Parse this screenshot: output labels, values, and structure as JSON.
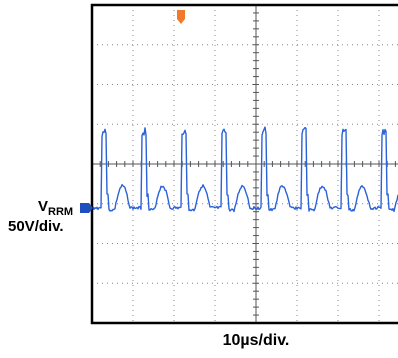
{
  "labels": {
    "channel_symbol": "V",
    "channel_subscript": "RRM",
    "vertical_scale": "50V/div.",
    "horizontal_scale": "10µs/div."
  }
}
